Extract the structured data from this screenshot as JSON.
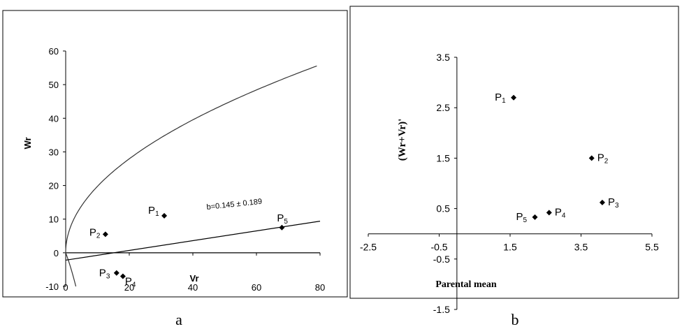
{
  "colors": {
    "ink": "#000000",
    "background": "#ffffff",
    "panel_border": "#000000"
  },
  "icon_names": [
    "diamond-marker"
  ],
  "chart_data": [
    {
      "panel_label": "a",
      "type": "scatter",
      "title": "",
      "xlabel": "Vr",
      "ylabel": "Wr",
      "xlim": [
        0,
        80
      ],
      "ylim": [
        -10,
        60
      ],
      "x_ticks": [
        0,
        20,
        40,
        60,
        80
      ],
      "y_ticks": [
        -10,
        0,
        10,
        20,
        30,
        40,
        50,
        60
      ],
      "grid": false,
      "legend": "none",
      "points": [
        {
          "label": "P",
          "sub": "1",
          "x": 31,
          "y": 11
        },
        {
          "label": "P",
          "sub": "2",
          "x": 12.5,
          "y": 5.5
        },
        {
          "label": "P",
          "sub": "3",
          "x": 16,
          "y": -6
        },
        {
          "label": "P",
          "sub": "4",
          "x": 18,
          "y": -7
        },
        {
          "label": "P",
          "sub": "5",
          "x": 68,
          "y": 7.5
        }
      ],
      "regression_line": {
        "annotation": "b=0.145 ± 0.189",
        "intercept": -2.2,
        "slope": 0.145,
        "x_range": [
          0,
          80
        ]
      },
      "parabola": {
        "description_free": true,
        "x_range": [
          0,
          79
        ],
        "formula_coeff": 6.25
      }
    },
    {
      "panel_label": "b",
      "type": "scatter",
      "title": "",
      "xlabel": "Parental mean",
      "ylabel": "(Wr+Vr)'",
      "xlim": [
        -2.5,
        5.5
      ],
      "ylim": [
        -1.5,
        3.5
      ],
      "x_ticks": [
        -2.5,
        -0.5,
        1.5,
        3.5,
        5.5
      ],
      "y_ticks": [
        -1.5,
        -0.5,
        0.5,
        1.5,
        2.5,
        3.5
      ],
      "grid": false,
      "legend": "none",
      "points": [
        {
          "label": "P",
          "sub": "1",
          "x": 1.6,
          "y": 2.7,
          "label_side": "left"
        },
        {
          "label": "P",
          "sub": "2",
          "x": 3.8,
          "y": 1.5,
          "label_side": "right"
        },
        {
          "label": "P",
          "sub": "3",
          "x": 4.1,
          "y": 0.62,
          "label_side": "right"
        },
        {
          "label": "P",
          "sub": "4",
          "x": 2.6,
          "y": 0.42,
          "label_side": "right"
        },
        {
          "label": "P",
          "sub": "5",
          "x": 2.2,
          "y": 0.33,
          "label_side": "left"
        }
      ]
    }
  ]
}
